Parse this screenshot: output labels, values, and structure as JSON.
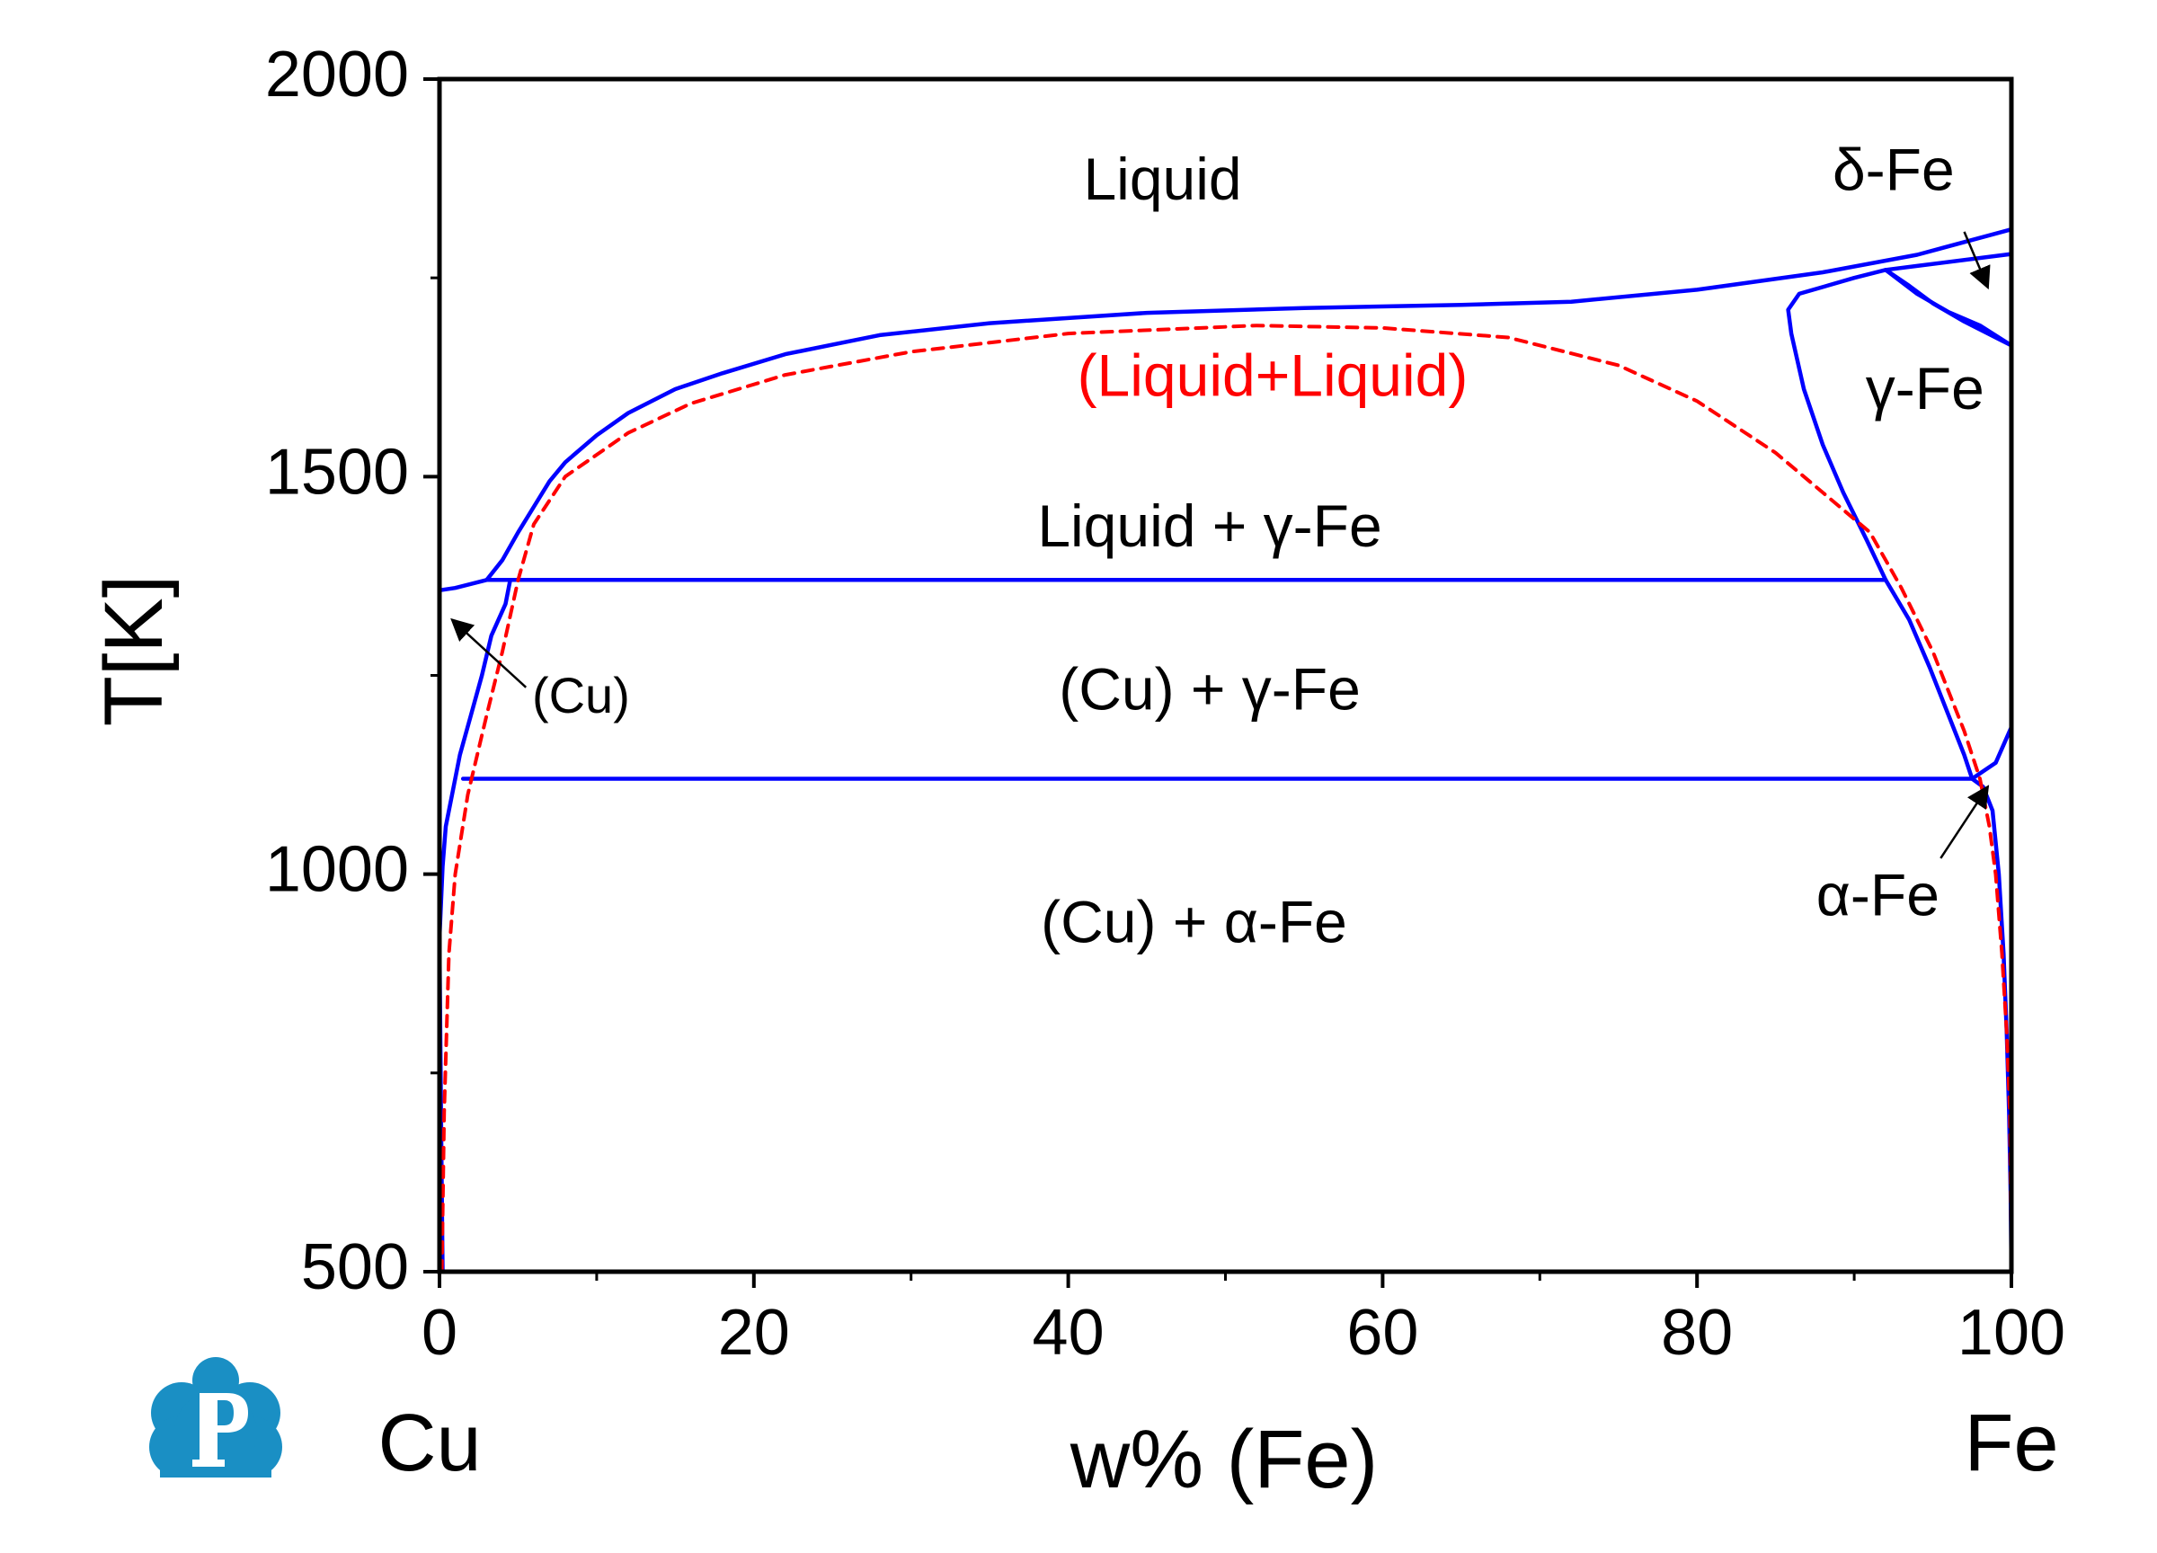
{
  "chart_data": {
    "type": "line",
    "title": "",
    "xlabel": "w% (Fe)",
    "ylabel": "T[K]",
    "xlim": [
      0,
      100
    ],
    "ylim": [
      500,
      2000
    ],
    "x_ticks": [
      0,
      20,
      40,
      60,
      80,
      100
    ],
    "y_ticks": [
      500,
      1000,
      1500,
      2000
    ],
    "x_tick_labels": [
      "0",
      "20",
      "40",
      "60",
      "80",
      "100"
    ],
    "y_tick_labels": [
      "500",
      "1000",
      "1500",
      "2000"
    ],
    "x_minor_step": 10,
    "y_minor_step": 250,
    "end_labels": {
      "left": "Cu",
      "right": "Fe"
    },
    "grid": false,
    "legend": "none",
    "colors": {
      "equilibrium": "#0000ff",
      "metastable": "#ff0000",
      "logo": "#1a8fc4"
    },
    "series": [
      {
        "style": "solid",
        "color": "#0000ff",
        "points": [
          [
            3,
            1370
          ],
          [
            4,
            1395
          ],
          [
            5,
            1430
          ],
          [
            6,
            1462
          ],
          [
            7,
            1494
          ],
          [
            8,
            1518
          ],
          [
            10,
            1552
          ],
          [
            12,
            1580
          ],
          [
            15,
            1610
          ],
          [
            18,
            1630
          ],
          [
            22,
            1654
          ],
          [
            28,
            1678
          ],
          [
            35,
            1693
          ],
          [
            45,
            1706
          ],
          [
            55,
            1712
          ],
          [
            65,
            1716
          ],
          [
            72,
            1720
          ],
          [
            80,
            1735
          ],
          [
            88,
            1757
          ],
          [
            94,
            1779
          ],
          [
            100,
            1811
          ]
        ]
      },
      {
        "style": "solid",
        "color": "#0000ff",
        "points": [
          [
            0,
            1357
          ],
          [
            1,
            1360
          ],
          [
            3,
            1370
          ],
          [
            4.5,
            1370
          ],
          [
            92,
            1370
          ]
        ]
      },
      {
        "style": "solid",
        "color": "#0000ff",
        "points": [
          [
            0,
            920
          ],
          [
            0.2,
            1010
          ],
          [
            0.4,
            1060
          ],
          [
            0.8,
            1100
          ],
          [
            1.3,
            1150
          ],
          [
            2,
            1200
          ],
          [
            2.7,
            1250
          ],
          [
            3.3,
            1300
          ],
          [
            4.2,
            1340
          ],
          [
            4.5,
            1370
          ]
        ]
      },
      {
        "style": "solid",
        "color": "#0000ff",
        "points": [
          [
            1.5,
            1120
          ],
          [
            97.5,
            1120
          ],
          [
            99,
            1140
          ],
          [
            100,
            1185
          ]
        ]
      },
      {
        "style": "solid",
        "color": "#0000ff",
        "points": [
          [
            92,
            1370
          ],
          [
            90.8,
            1420
          ],
          [
            89.3,
            1480
          ],
          [
            88,
            1540
          ],
          [
            86.8,
            1610
          ],
          [
            86,
            1680
          ],
          [
            85.8,
            1710
          ],
          [
            86.5,
            1730
          ],
          [
            90,
            1750
          ],
          [
            92,
            1760
          ],
          [
            94,
            1765
          ],
          [
            100,
            1780
          ]
        ]
      },
      {
        "style": "solid",
        "color": "#0000ff",
        "points": [
          [
            92,
            1370
          ],
          [
            93.5,
            1320
          ],
          [
            94.8,
            1260
          ],
          [
            96,
            1200
          ],
          [
            97,
            1150
          ],
          [
            97.5,
            1120
          ]
        ]
      },
      {
        "style": "solid",
        "color": "#0000ff",
        "points": [
          [
            92,
            1760
          ],
          [
            93.5,
            1740
          ],
          [
            95,
            1718
          ],
          [
            97,
            1695
          ],
          [
            100,
            1665
          ]
        ]
      },
      {
        "style": "solid",
        "color": "#0000ff",
        "points": [
          [
            92,
            1760
          ],
          [
            94,
            1730
          ],
          [
            96,
            1707
          ],
          [
            98,
            1690
          ],
          [
            100,
            1665
          ]
        ]
      },
      {
        "style": "solid",
        "color": "#0000ff",
        "points": [
          [
            97.5,
            1120
          ],
          [
            98.2,
            1110
          ],
          [
            98.8,
            1080
          ],
          [
            99.2,
            1000
          ],
          [
            99.5,
            900
          ],
          [
            99.7,
            800
          ],
          [
            99.85,
            700
          ],
          [
            99.95,
            600
          ],
          [
            100,
            500
          ]
        ]
      },
      {
        "style": "solid",
        "color": "#0000ff",
        "points": [
          [
            0,
            920
          ],
          [
            0.05,
            800
          ],
          [
            0.1,
            700
          ],
          [
            0.15,
            600
          ],
          [
            0.2,
            500
          ]
        ]
      },
      {
        "style": "dashed",
        "color": "#ff0000",
        "points": [
          [
            0.15,
            500
          ],
          [
            0.3,
            700
          ],
          [
            0.6,
            900
          ],
          [
            1,
            1000
          ],
          [
            1.8,
            1100
          ],
          [
            3,
            1200
          ],
          [
            4,
            1280
          ],
          [
            5,
            1370
          ],
          [
            6,
            1440
          ],
          [
            8,
            1500
          ],
          [
            12,
            1555
          ],
          [
            16,
            1592
          ],
          [
            22,
            1628
          ],
          [
            30,
            1657
          ],
          [
            40,
            1680
          ],
          [
            52,
            1690
          ],
          [
            60,
            1687
          ],
          [
            68,
            1675
          ],
          [
            75,
            1640
          ],
          [
            80,
            1595
          ],
          [
            85,
            1530
          ],
          [
            88,
            1480
          ],
          [
            91,
            1430
          ],
          [
            93,
            1360
          ],
          [
            95,
            1280
          ],
          [
            97,
            1180
          ],
          [
            98,
            1120
          ],
          [
            98.6,
            1060
          ],
          [
            99,
            1000
          ],
          [
            99.4,
            900
          ],
          [
            99.7,
            800
          ],
          [
            99.9,
            700
          ],
          [
            100,
            500
          ]
        ]
      }
    ],
    "region_labels": [
      {
        "text": "Liquid",
        "x": 46,
        "y": 1868,
        "color": "#000000"
      },
      {
        "text": "(Liquid+Liquid)",
        "x": 53,
        "y": 1621,
        "color": "#ff0000"
      },
      {
        "text": "Liquid + γ-Fe",
        "x": 49,
        "y": 1432,
        "color": "#000000"
      },
      {
        "text": "(Cu) + γ-Fe",
        "x": 49,
        "y": 1227,
        "color": "#000000"
      },
      {
        "text": "(Cu) + α-Fe",
        "x": 48,
        "y": 934,
        "color": "#000000"
      },
      {
        "text": "δ-Fe",
        "x": 92.5,
        "y": 1880,
        "color": "#000000"
      },
      {
        "text": "γ-Fe",
        "x": 94.5,
        "y": 1605,
        "color": "#000000"
      },
      {
        "text": "α-Fe",
        "x": 91.5,
        "y": 968,
        "color": "#000000"
      },
      {
        "text": "(Cu)",
        "x": 9,
        "y": 1220,
        "color": "#000000"
      }
    ],
    "annotations": [
      {
        "from": [
          97,
          1808
        ],
        "to": [
          98.5,
          1738
        ]
      },
      {
        "from": [
          5.5,
          1235
        ],
        "to": [
          0.8,
          1320
        ]
      },
      {
        "from": [
          95.5,
          1020
        ],
        "to": [
          98.5,
          1110
        ]
      }
    ]
  }
}
